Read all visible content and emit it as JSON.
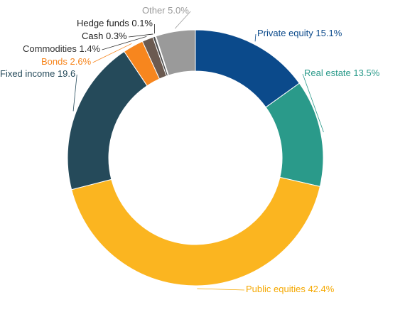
{
  "chart_data": {
    "type": "donut",
    "categories": [
      "Private equity",
      "Real estate",
      "Public equities",
      "Fixed income",
      "Bonds",
      "Commodities",
      "Cash",
      "Hedge funds",
      "Other"
    ],
    "values": [
      15.1,
      13.5,
      42.4,
      19.6,
      2.6,
      1.4,
      0.3,
      0.1,
      5.0
    ],
    "value_labels": [
      "15.1%",
      "13.5%",
      "42.4%",
      "19.6",
      "2.6%",
      "1.4%",
      "0.3%",
      "0.1%",
      "5.0%"
    ],
    "colors": [
      "#0b4a8b",
      "#2a9a8a",
      "#fbb520",
      "#254a5a",
      "#f7861e",
      "#6b5a50",
      "#4a4a4a",
      "#1a1a1a",
      "#9a9a9a"
    ]
  }
}
